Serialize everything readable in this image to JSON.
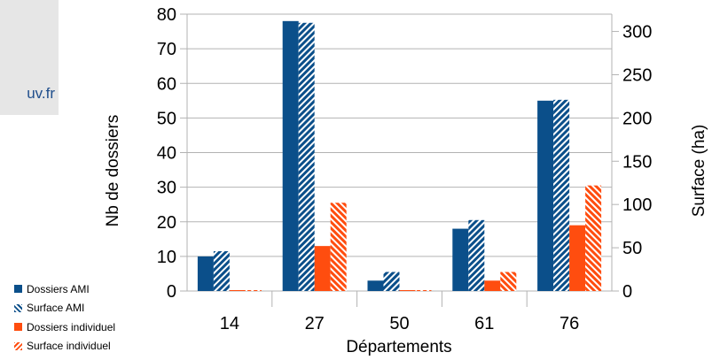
{
  "side_panel": {
    "text": "uv.fr"
  },
  "colors": {
    "blue": "#0b4f8a",
    "orange": "#ff4d0f",
    "axis": "#b3b3b3",
    "grid": "#b3b3b3"
  },
  "chart_data": {
    "type": "bar",
    "title": "",
    "xlabel": "Départements",
    "ylabel": "Nb de dossiers",
    "y2label": "Surface (ha)",
    "categories": [
      "14",
      "27",
      "50",
      "61",
      "76"
    ],
    "ylim": [
      0,
      80
    ],
    "y2lim": [
      0,
      320
    ],
    "yticks": [
      "0",
      "10",
      "20",
      "30",
      "40",
      "50",
      "60",
      "70",
      "80"
    ],
    "y2ticks": [
      "0",
      "50",
      "100",
      "150",
      "200",
      "250",
      "300"
    ],
    "grid": true,
    "legend_position": "bottom-left",
    "series": [
      {
        "name": "Dossiers AMI",
        "axis": "left",
        "color": "#0b4f8a",
        "pattern": "solid",
        "values": [
          10,
          78,
          3,
          18,
          55
        ]
      },
      {
        "name": "Surface AMI",
        "axis": "right",
        "color": "#0b4f8a",
        "pattern": "hatch",
        "values": [
          46,
          310,
          22,
          82,
          221
        ]
      },
      {
        "name": "Dossiers individuel",
        "axis": "left",
        "color": "#ff4d0f",
        "pattern": "solid",
        "values": [
          0,
          13,
          0,
          3,
          19
        ]
      },
      {
        "name": "Surface individuel",
        "axis": "right",
        "color": "#ff4d0f",
        "pattern": "hatch",
        "values": [
          0,
          102,
          0,
          22,
          122
        ]
      }
    ]
  }
}
